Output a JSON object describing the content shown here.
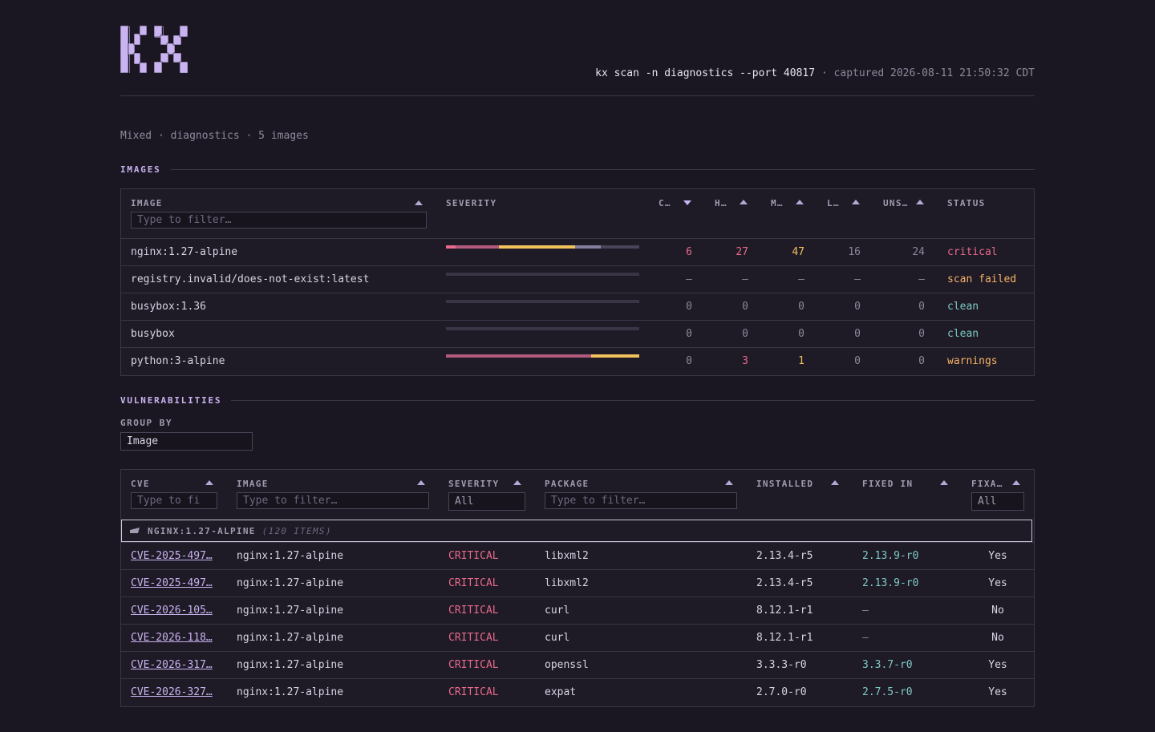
{
  "header": {
    "command": "kx scan -n diagnostics --port 40817",
    "separator": "·",
    "captured": "captured 2026-08-11 21:50:32 CDT"
  },
  "subtitle": "Mixed · diagnostics · 5 images",
  "images_section": {
    "title": "IMAGES",
    "columns": {
      "image": "IMAGE",
      "severity": "SEVERITY",
      "critical": "C…",
      "high": "H…",
      "medium": "M…",
      "low": "L…",
      "unspecified": "UNS…",
      "status": "STATUS"
    },
    "filter_placeholder": "Type to filter…",
    "rows": [
      {
        "image": "nginx:1.27-alpine",
        "c": "6",
        "h": "27",
        "m": "47",
        "l": "16",
        "u": "24",
        "status": "critical",
        "status_color": "#e86a8a",
        "counts": [
          6,
          27,
          47,
          16,
          24
        ]
      },
      {
        "image": "registry.invalid/does-not-exist:latest",
        "c": "–",
        "h": "–",
        "m": "–",
        "l": "–",
        "u": "–",
        "status": "scan failed",
        "status_color": "#f7b267",
        "counts": [
          0,
          0,
          0,
          0,
          0
        ]
      },
      {
        "image": "busybox:1.36",
        "c": "0",
        "h": "0",
        "m": "0",
        "l": "0",
        "u": "0",
        "status": "clean",
        "status_color": "#7ec9c4",
        "counts": [
          0,
          0,
          0,
          0,
          0
        ]
      },
      {
        "image": "busybox",
        "c": "0",
        "h": "0",
        "m": "0",
        "l": "0",
        "u": "0",
        "status": "clean",
        "status_color": "#7ec9c4",
        "counts": [
          0,
          0,
          0,
          0,
          0
        ]
      },
      {
        "image": "python:3-alpine",
        "c": "0",
        "h": "3",
        "m": "1",
        "l": "0",
        "u": "0",
        "status": "warnings",
        "status_color": "#f7b267",
        "counts": [
          0,
          3,
          1,
          0,
          0
        ]
      }
    ],
    "severity_colors": [
      "#e86a8a",
      "#b35a7e",
      "#f2c25c",
      "#8580a0",
      "#4a4458"
    ]
  },
  "vulns_section": {
    "title": "VULNERABILITIES",
    "group_by_label": "GROUP BY",
    "group_by_value": "Image",
    "columns": {
      "cve": "CVE",
      "image": "IMAGE",
      "severity": "SEVERITY",
      "package": "PACKAGE",
      "installed": "INSTALLED",
      "fixed_in": "FIXED IN",
      "fixable": "FIXA…"
    },
    "cve_filter_placeholder": "Type to fi",
    "filter_placeholder": "Type to filter…",
    "severity_filter": "All",
    "fixable_filter": "All",
    "group": {
      "name": "NGINX:1.27-ALPINE",
      "count": "(120 ITEMS)"
    },
    "rows": [
      {
        "cve": "CVE-2025-497…",
        "image": "nginx:1.27-alpine",
        "severity": "CRITICAL",
        "package": "libxml2",
        "installed": "2.13.4-r5",
        "fixed": "2.13.9-r0",
        "fixable": "Yes"
      },
      {
        "cve": "CVE-2025-497…",
        "image": "nginx:1.27-alpine",
        "severity": "CRITICAL",
        "package": "libxml2",
        "installed": "2.13.4-r5",
        "fixed": "2.13.9-r0",
        "fixable": "Yes"
      },
      {
        "cve": "CVE-2026-105…",
        "image": "nginx:1.27-alpine",
        "severity": "CRITICAL",
        "package": "curl",
        "installed": "8.12.1-r1",
        "fixed": "–",
        "fixable": "No"
      },
      {
        "cve": "CVE-2026-118…",
        "image": "nginx:1.27-alpine",
        "severity": "CRITICAL",
        "package": "curl",
        "installed": "8.12.1-r1",
        "fixed": "–",
        "fixable": "No"
      },
      {
        "cve": "CVE-2026-317…",
        "image": "nginx:1.27-alpine",
        "severity": "CRITICAL",
        "package": "openssl",
        "installed": "3.3.3-r0",
        "fixed": "3.3.7-r0",
        "fixable": "Yes"
      },
      {
        "cve": "CVE-2026-327…",
        "image": "nginx:1.27-alpine",
        "severity": "CRITICAL",
        "package": "expat",
        "installed": "2.7.0-r0",
        "fixed": "2.7.5-r0",
        "fixable": "Yes"
      }
    ]
  }
}
